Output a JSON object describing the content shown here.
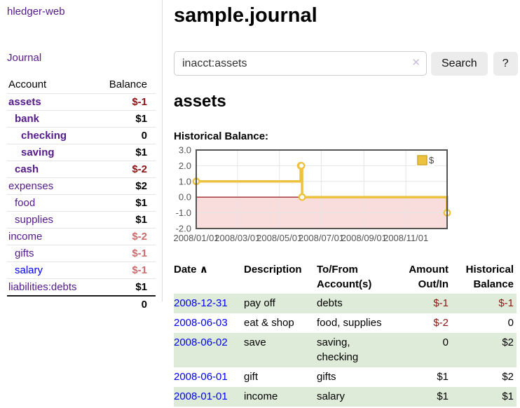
{
  "app": {
    "brand": "hledger-web",
    "nav": {
      "journal_label": "Journal"
    }
  },
  "sidebar": {
    "header": {
      "account": "Account",
      "balance": "Balance"
    },
    "accounts": [
      {
        "name": "assets",
        "level": 1,
        "bold": true,
        "balance": "$-1",
        "negative": true,
        "muted": false,
        "blue": false
      },
      {
        "name": "bank",
        "level": 2,
        "bold": true,
        "balance": "$1",
        "negative": false,
        "muted": false,
        "blue": false
      },
      {
        "name": "checking",
        "level": 3,
        "bold": true,
        "balance": "0",
        "negative": false,
        "muted": false,
        "blue": false
      },
      {
        "name": "saving",
        "level": 3,
        "bold": true,
        "balance": "$1",
        "negative": false,
        "muted": false,
        "blue": false
      },
      {
        "name": "cash",
        "level": 2,
        "bold": true,
        "balance": "$-2",
        "negative": true,
        "muted": false,
        "blue": false
      },
      {
        "name": "expenses",
        "level": 1,
        "bold": false,
        "balance": "$2",
        "negative": false,
        "muted": false,
        "blue": false
      },
      {
        "name": "food",
        "level": 2,
        "bold": false,
        "balance": "$1",
        "negative": false,
        "muted": false,
        "blue": false
      },
      {
        "name": "supplies",
        "level": 2,
        "bold": false,
        "balance": "$1",
        "negative": false,
        "muted": false,
        "blue": false
      },
      {
        "name": "income",
        "level": 1,
        "bold": false,
        "balance": "$-2",
        "negative": true,
        "muted": true,
        "blue": false
      },
      {
        "name": "gifts",
        "level": 2,
        "bold": false,
        "balance": "$-1",
        "negative": true,
        "muted": true,
        "blue": false
      },
      {
        "name": "salary",
        "level": 2,
        "bold": false,
        "balance": "$-1",
        "negative": true,
        "muted": true,
        "blue": true
      },
      {
        "name": "liabilities:debts",
        "level": 1,
        "bold": false,
        "balance": "$1",
        "negative": false,
        "muted": false,
        "blue": false
      }
    ],
    "total": "0"
  },
  "main": {
    "title": "sample.journal",
    "search": {
      "value": "inacct:assets",
      "clear_icon": "✕",
      "search_button": "Search",
      "help_button": "?"
    },
    "account_heading": "assets",
    "chart_heading": "Historical Balance:"
  },
  "chart_data": {
    "type": "line",
    "interpolation": "step",
    "title": "Historical Balance",
    "series": [
      {
        "name": "$",
        "color": "#edc240",
        "points": [
          [
            "2008-01-01",
            1
          ],
          [
            "2008-06-01",
            2
          ],
          [
            "2008-06-02",
            2
          ],
          [
            "2008-06-03",
            0
          ],
          [
            "2008-12-31",
            -1
          ]
        ]
      }
    ],
    "xlim": [
      "2008-01-01",
      "2008-12-31"
    ],
    "ylim": [
      -2,
      3
    ],
    "x_ticks": [
      "2008/01/01",
      "2008/03/01",
      "2008/05/01",
      "2008/07/01",
      "2008/09/01",
      "2008/11/01"
    ],
    "y_ticks": [
      "3.0",
      "2.0",
      "1.0",
      "0.0",
      "-1.0",
      "-2.0"
    ],
    "grid": true,
    "legend": {
      "label": "$",
      "position": "top-right"
    },
    "colors": {
      "line": "#edc240",
      "marker_fill": "#ffffff",
      "negative_region": "#f9dddd",
      "zero_line": "#8b0000",
      "gridline": "#e6e6e6",
      "border": "#545454",
      "tick_text": "#545454"
    }
  },
  "register": {
    "date_column": "Date",
    "sort_icon": "∧",
    "description_column": "Description",
    "accounts_column": "To/From Account(s)",
    "amount_column": "Amount Out/In",
    "balance_column": "Historical Balance",
    "rows": [
      {
        "date": "2008-12-31",
        "description": "pay off",
        "accounts": "debts",
        "amount": "$-1",
        "amount_negative": true,
        "balance": "$-1",
        "balance_negative": true
      },
      {
        "date": "2008-06-03",
        "description": "eat & shop",
        "accounts": "food, supplies",
        "amount": "$-2",
        "amount_negative": true,
        "balance": "0",
        "balance_negative": false
      },
      {
        "date": "2008-06-02",
        "description": "save",
        "accounts": "saving, checking",
        "amount": "0",
        "amount_negative": false,
        "balance": "$2",
        "balance_negative": false
      },
      {
        "date": "2008-06-01",
        "description": "gift",
        "accounts": "gifts",
        "amount": "$1",
        "amount_negative": false,
        "balance": "$2",
        "balance_negative": false
      },
      {
        "date": "2008-01-01",
        "description": "income",
        "accounts": "salary",
        "amount": "$1",
        "amount_negative": false,
        "balance": "$1",
        "balance_negative": false
      }
    ]
  },
  "colors": {
    "link_purple": "#551a8b",
    "link_blue": "#0000ee",
    "negative_strong": "#8b1515",
    "negative_muted": "#c86e6e",
    "row_stripe_green": "#deebd8"
  }
}
